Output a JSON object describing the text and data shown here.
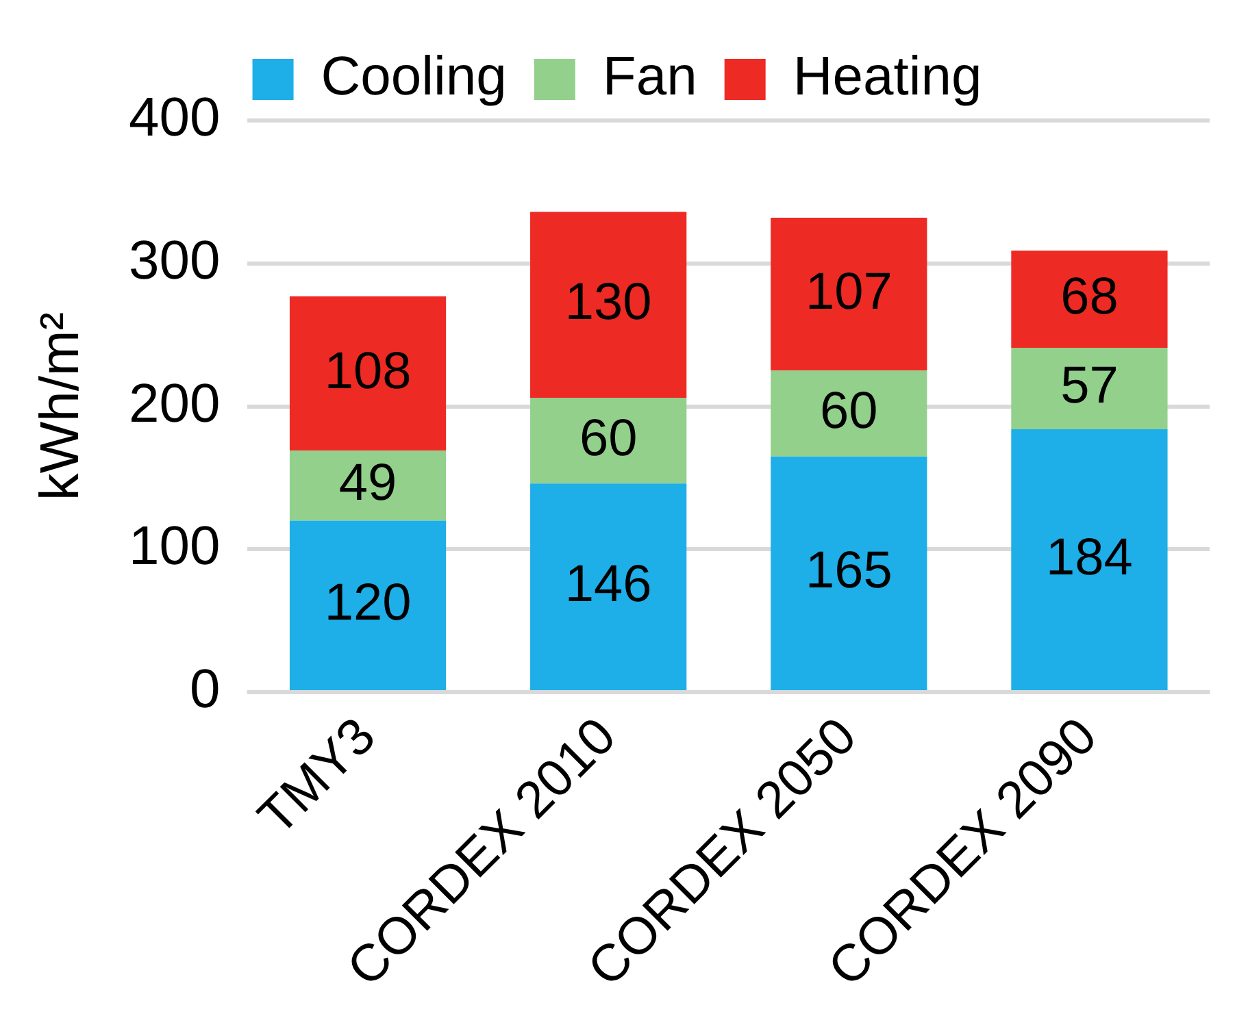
{
  "chart_data": {
    "type": "bar",
    "stacked": true,
    "ylabel": "kWh/m²",
    "categories": [
      "TMY3",
      "CORDEX 2010",
      "CORDEX 2050",
      "CORDEX 2090"
    ],
    "series": [
      {
        "name": "Cooling",
        "color": "#1eaee8",
        "values": [
          120,
          146,
          165,
          184
        ]
      },
      {
        "name": "Fan",
        "color": "#92d08c",
        "values": [
          49,
          60,
          60,
          57
        ]
      },
      {
        "name": "Heating",
        "color": "#ee2a24",
        "values": [
          108,
          130,
          107,
          68
        ]
      }
    ],
    "ylim": [
      0,
      400
    ],
    "yticks": [
      0,
      100,
      200,
      300,
      400
    ],
    "grid": "y",
    "legend": "top",
    "data_labels": true
  }
}
